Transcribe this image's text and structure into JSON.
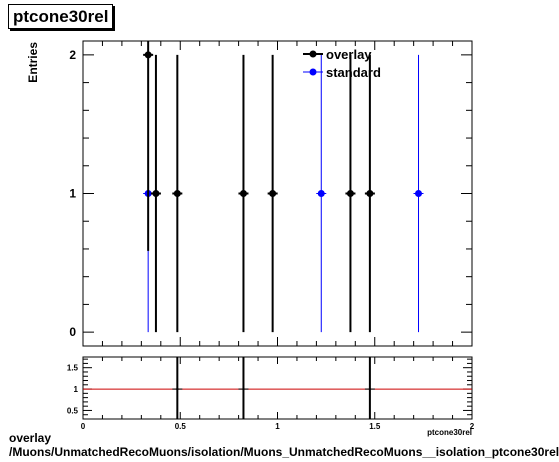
{
  "title": "ptcone30rel",
  "caption": {
    "line1": "overlay",
    "line2": "/Muons/UnmatchedRecoMuons/isolation/Muons_UnmatchedRecoMuons__isolation_ptcone30rel"
  },
  "chart_data": [
    {
      "type": "scatter",
      "panel": "main",
      "xlim": [
        0,
        2
      ],
      "ylim": [
        -0.1,
        2.1
      ],
      "ylabel": "Entries",
      "yticks": [
        "0",
        "1",
        "2"
      ],
      "grid": false,
      "legend_position": "top-right",
      "series": [
        {
          "name": "overlay",
          "color": "#000000",
          "points": [
            {
              "x": 0.335,
              "y": 2
            },
            {
              "x": 0.375,
              "y": 1
            },
            {
              "x": 0.485,
              "y": 1
            },
            {
              "x": 0.825,
              "y": 1
            },
            {
              "x": 0.975,
              "y": 1
            },
            {
              "x": 1.375,
              "y": 1
            },
            {
              "x": 1.475,
              "y": 1
            }
          ]
        },
        {
          "name": "standard",
          "color": "#0000ff",
          "points": [
            {
              "x": 0.335,
              "y": 1
            },
            {
              "x": 1.225,
              "y": 1
            },
            {
              "x": 1.725,
              "y": 1
            }
          ]
        }
      ]
    },
    {
      "type": "scatter",
      "panel": "ratio",
      "xlim": [
        0,
        2
      ],
      "ylim": [
        0.3,
        1.75
      ],
      "xlabel": "ptcone30rel",
      "xticks": [
        "0",
        "0.5",
        "1",
        "1.5",
        "2"
      ],
      "yticks": [
        "0.5",
        "1",
        "1.5"
      ],
      "reference_line": {
        "y": 1,
        "color": "#cc0000"
      },
      "points": [
        {
          "x": 0.485,
          "y": 1
        },
        {
          "x": 0.825,
          "y": 1
        },
        {
          "x": 1.475,
          "y": 1
        }
      ]
    }
  ]
}
